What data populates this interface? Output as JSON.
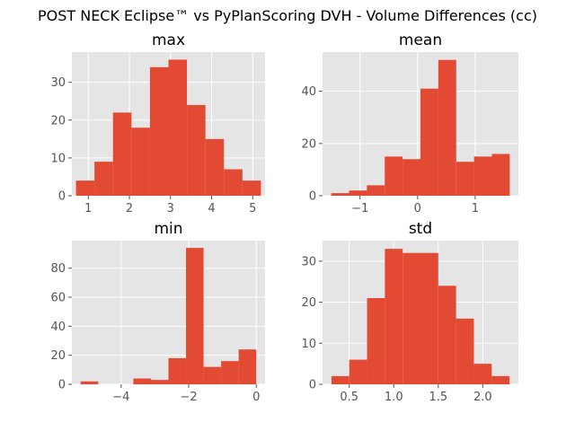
{
  "figure": {
    "suptitle": "POST NECK Eclipse™ vs PyPlanScoring DVH - Volume Differences (cc)",
    "style": "ggplot",
    "background": "#ffffff",
    "panel_background": "#e5e5e5",
    "grid_color": "#ffffff",
    "bar_color": "#e24a33",
    "tick_color": "#555555"
  },
  "chart_data": [
    {
      "type": "bar",
      "title": "max",
      "bin_edges": [
        0.7,
        1.15,
        1.6,
        2.05,
        2.5,
        2.95,
        3.4,
        3.85,
        4.3,
        4.75,
        5.2
      ],
      "values": [
        4,
        9,
        22,
        18,
        34,
        36,
        24,
        15,
        7,
        4
      ],
      "xlim": [
        0.6,
        5.3
      ],
      "ylim": [
        0,
        38
      ],
      "xticks": [
        1,
        2,
        3,
        4,
        5
      ],
      "xtick_labels": [
        "1",
        "2",
        "3",
        "4",
        "5"
      ],
      "yticks": [
        0,
        10,
        20,
        30
      ],
      "ytick_labels": [
        "0",
        "10",
        "20",
        "30"
      ],
      "grid": true
    },
    {
      "type": "bar",
      "title": "mean",
      "bin_edges": [
        -1.5,
        -1.19,
        -0.88,
        -0.57,
        -0.26,
        0.05,
        0.36,
        0.67,
        0.98,
        1.29,
        1.6
      ],
      "values": [
        1,
        2,
        4,
        15,
        14,
        41,
        52,
        13,
        15,
        16
      ],
      "xlim": [
        -1.65,
        1.75
      ],
      "ylim": [
        0,
        55
      ],
      "xticks": [
        -1,
        0,
        1
      ],
      "xtick_labels": [
        "−1",
        "0",
        "1"
      ],
      "yticks": [
        0,
        20,
        40
      ],
      "ytick_labels": [
        "0",
        "20",
        "40"
      ],
      "grid": true
    },
    {
      "type": "bar",
      "title": "min",
      "bin_edges": [
        -5.2,
        -4.68,
        -4.16,
        -3.64,
        -3.12,
        -2.6,
        -2.08,
        -1.56,
        -1.04,
        -0.52,
        0.0
      ],
      "values": [
        2,
        0,
        0,
        4,
        3,
        18,
        94,
        12,
        16,
        24
      ],
      "xlim": [
        -5.46,
        0.26
      ],
      "ylim": [
        0,
        99
      ],
      "xticks": [
        -4,
        -2,
        0
      ],
      "xtick_labels": [
        "−4",
        "−2",
        "0"
      ],
      "yticks": [
        0,
        20,
        40,
        60,
        80
      ],
      "ytick_labels": [
        "0",
        "20",
        "40",
        "60",
        "80"
      ],
      "grid": true
    },
    {
      "type": "bar",
      "title": "std",
      "bin_edges": [
        0.3,
        0.5,
        0.7,
        0.9,
        1.1,
        1.3,
        1.5,
        1.7,
        1.9,
        2.1,
        2.3
      ],
      "values": [
        2,
        6,
        21,
        33,
        32,
        32,
        24,
        16,
        5,
        2
      ],
      "xlim": [
        0.2,
        2.4
      ],
      "ylim": [
        0,
        35
      ],
      "xticks": [
        0.5,
        1.0,
        1.5,
        2.0
      ],
      "xtick_labels": [
        "0.5",
        "1.0",
        "1.5",
        "2.0"
      ],
      "yticks": [
        0,
        10,
        20,
        30
      ],
      "ytick_labels": [
        "0",
        "10",
        "20",
        "30"
      ],
      "grid": true
    }
  ]
}
